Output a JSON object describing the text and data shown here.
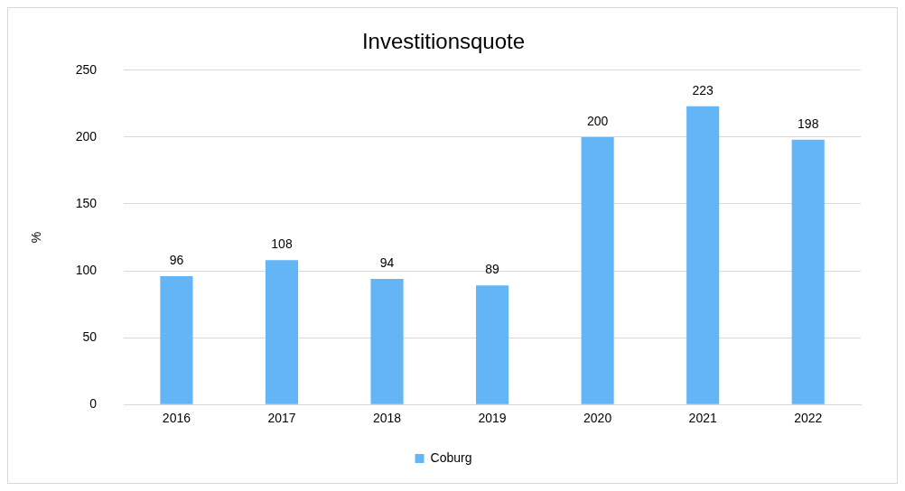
{
  "chart_data": {
    "type": "bar",
    "title": "Investitionsquote",
    "ylabel": "%",
    "categories": [
      "2016",
      "2017",
      "2018",
      "2019",
      "2020",
      "2021",
      "2022"
    ],
    "series": [
      {
        "name": "Coburg",
        "color": "#63b5f5",
        "values": [
          96,
          108,
          94,
          89,
          200,
          223,
          198
        ]
      }
    ],
    "ylim": [
      0,
      250
    ],
    "yticks": [
      0,
      50,
      100,
      150,
      200,
      250
    ],
    "grid": "y",
    "legend": "bottom",
    "data_labels": true
  }
}
